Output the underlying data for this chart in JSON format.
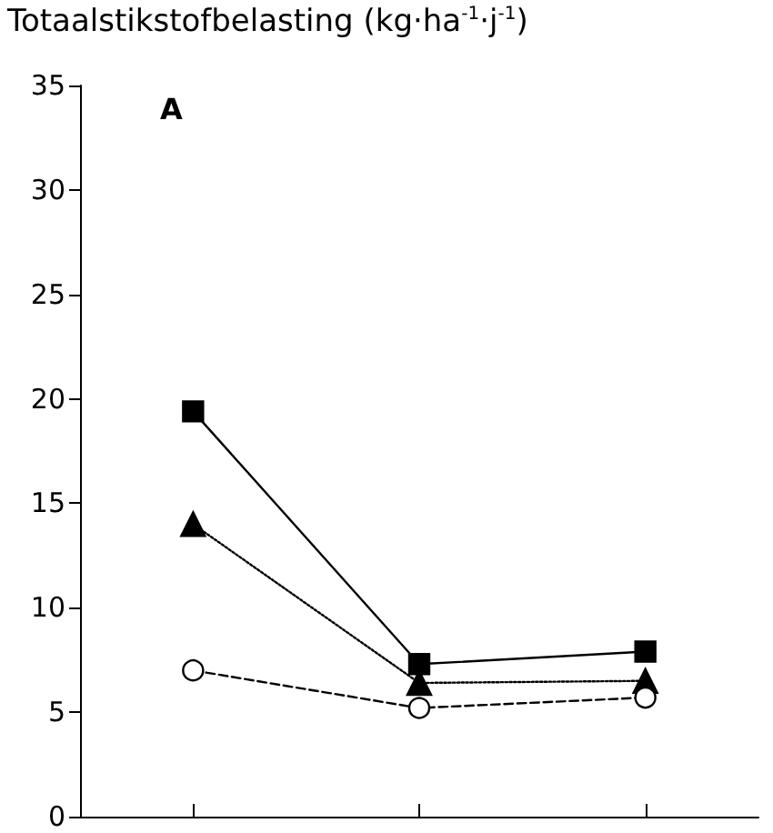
{
  "chart_data": {
    "type": "line",
    "ylabel": "Totaalstikstofbelasting (kg·ha$^{-1}$·j$^{-1}$)",
    "annotations": [
      "A"
    ],
    "categories": [
      null,
      null,
      null
    ],
    "ylim": [
      0,
      35
    ],
    "yticks": [
      0,
      5,
      10,
      15,
      20,
      25,
      30,
      35
    ],
    "grid": false,
    "tick_labels": "y",
    "series": [
      {
        "color": "#000000",
        "marker": "square",
        "line_style": "solid",
        "values": [
          19.4,
          7.3,
          7.9
        ]
      },
      {
        "color": "#000000",
        "marker": "triangle",
        "line_style": "dotted",
        "values": [
          14.0,
          6.4,
          6.5
        ]
      },
      {
        "color": "#000000",
        "marker": "circle",
        "line_style": "dashed",
        "values": [
          7.0,
          5.2,
          5.7
        ]
      }
    ]
  }
}
